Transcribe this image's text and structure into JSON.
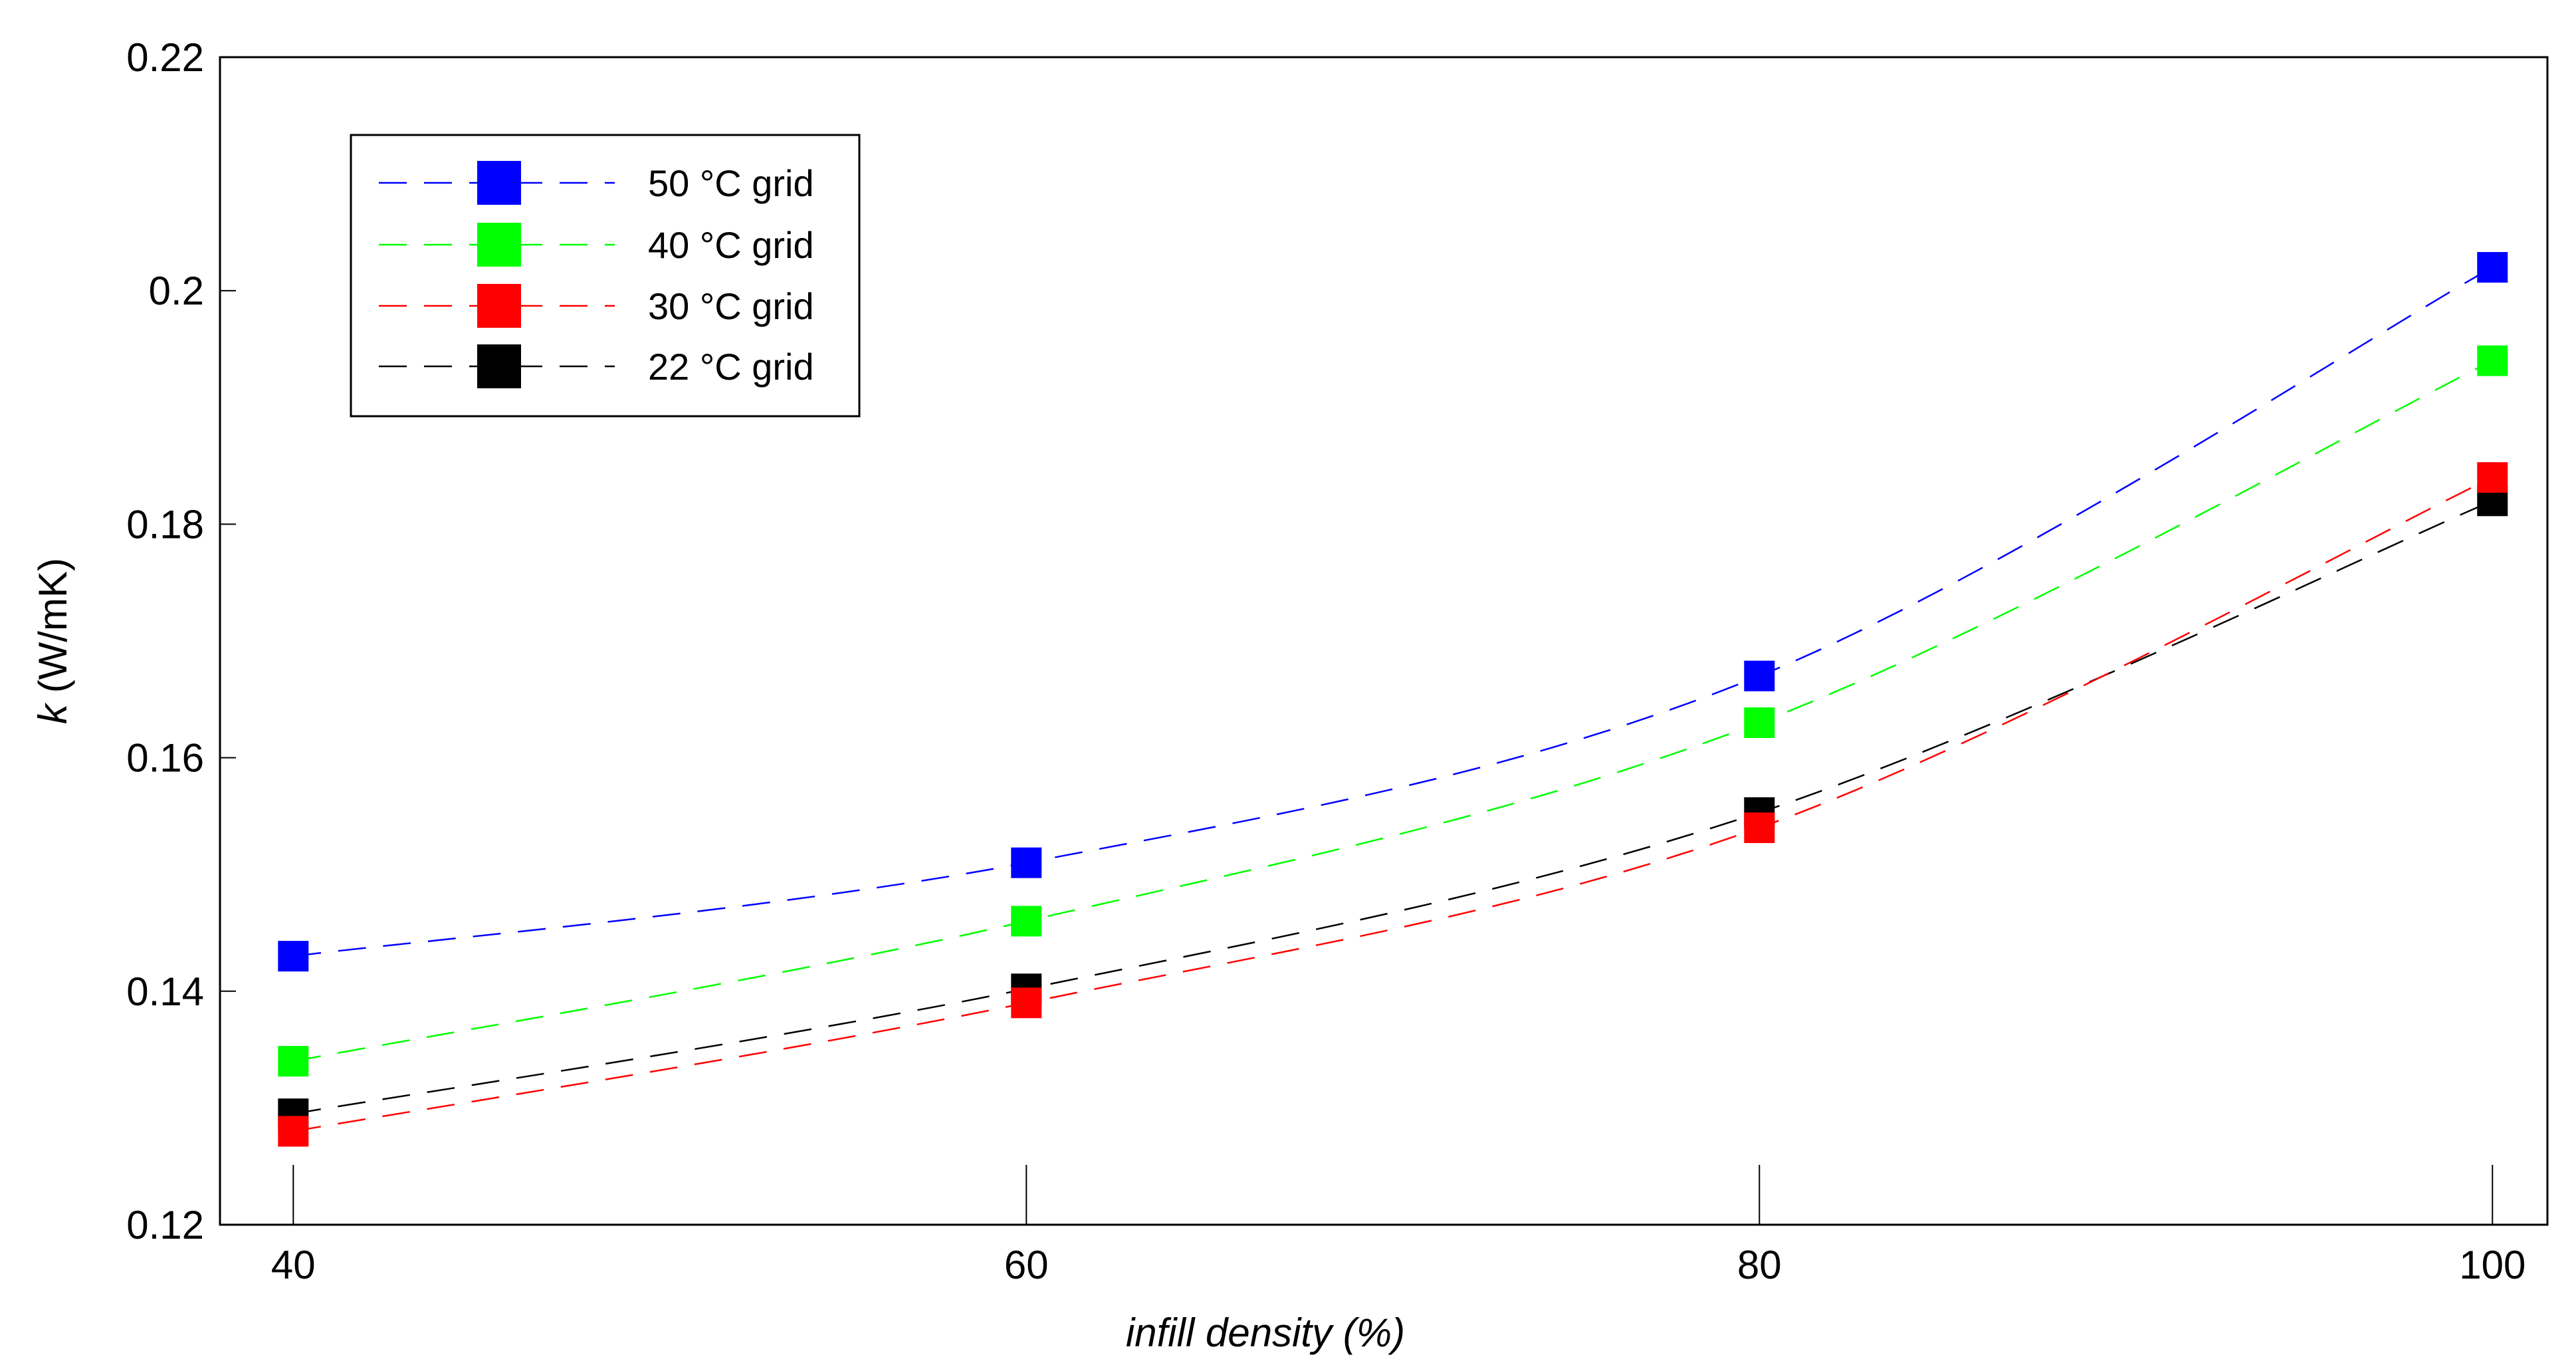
{
  "chart_data": {
    "type": "line",
    "title": "",
    "xlabel": "infill density (%)",
    "ylabel_var": "k",
    "ylabel_unit": " (W/mK)",
    "x": [
      40,
      60,
      80,
      100
    ],
    "x_ticks": [
      "40",
      "60",
      "80",
      "100"
    ],
    "xlim": [
      38,
      101.5
    ],
    "ylim": [
      0.12,
      0.22
    ],
    "y_ticks": [
      "0.12",
      "0.14",
      "0.16",
      "0.18",
      "0.2",
      "0.22"
    ],
    "grid": false,
    "legend_position": "top-left",
    "series": [
      {
        "name": "50 °C grid",
        "color": "#0000ff",
        "values": [
          0.143,
          0.151,
          0.167,
          0.202
        ]
      },
      {
        "name": "40 °C grid",
        "color": "#00ff00",
        "values": [
          0.134,
          0.146,
          0.163,
          0.194
        ]
      },
      {
        "name": "30 °C grid",
        "color": "#ff0000",
        "values": [
          0.128,
          0.139,
          0.154,
          0.184
        ]
      },
      {
        "name": "22 °C grid",
        "color": "#000000",
        "values": [
          0.1295,
          0.1402,
          0.1553,
          0.182
        ]
      }
    ]
  }
}
